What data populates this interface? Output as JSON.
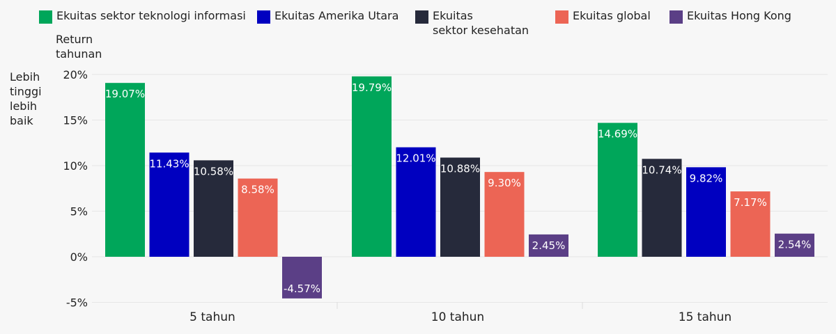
{
  "chart_data": {
    "type": "bar",
    "categories": [
      "5 tahun",
      "10 tahun",
      "15 tahun"
    ],
    "series": [
      {
        "name": "Ekuitas sektor teknologi informasi",
        "color": "#00a65a",
        "values": [
          19.07,
          19.79,
          14.69
        ]
      },
      {
        "name": "Ekuitas Amerika Utara",
        "color": "#0000c0",
        "values": [
          11.43,
          12.01,
          9.82
        ]
      },
      {
        "name": "Ekuitas\nsektor kesehatan",
        "color": "#262a3b",
        "values": [
          10.58,
          10.88,
          10.74
        ]
      },
      {
        "name": "Ekuitas global",
        "color": "#ec6555",
        "values": [
          8.58,
          9.3,
          7.17
        ]
      },
      {
        "name": "Ekuitas Hong Kong",
        "color": "#5b3f86",
        "values": [
          -4.57,
          2.45,
          2.54
        ]
      }
    ],
    "group_order": [
      [
        0,
        1,
        2,
        3,
        4
      ],
      [
        0,
        1,
        2,
        3,
        4
      ],
      [
        0,
        2,
        1,
        3,
        4
      ]
    ],
    "data_labels": [
      [
        "19.07%",
        "11.43%",
        "10.58%",
        "8.58%",
        "-4.57%"
      ],
      [
        "19.79%",
        "12.01%",
        "10.88%",
        "9.30%",
        "2.45%"
      ],
      [
        "14.69%",
        "9.82%",
        "10.74%",
        "7.17%",
        "2.54%"
      ]
    ],
    "y_ticks": [
      -5,
      0,
      5,
      10,
      15,
      20
    ],
    "y_tick_labels": [
      "-5%",
      "0%",
      "5%",
      "10%",
      "15%",
      "20%"
    ],
    "ylim": [
      -5,
      20
    ],
    "ylabel": "Return\ntahunan",
    "side_note": "Lebih\ntinggi\nlebih\nbaik",
    "grid": true,
    "legend_position": "top"
  }
}
